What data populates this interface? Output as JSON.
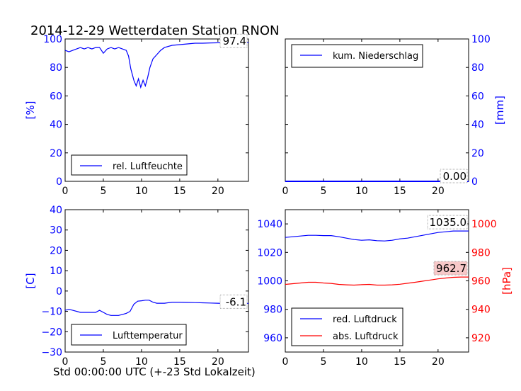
{
  "title": "2014-12-29 Wetterdaten Station RNON",
  "xlabel": "Std 00:00:00 UTC (+-23 Std Lokalzeit)",
  "colors": {
    "blue": "#0000ff",
    "red": "#ff0000",
    "annotation_box": "#f7c8c8"
  },
  "chart_data": [
    {
      "type": "line",
      "panel": "top-left",
      "xlim": [
        0,
        24
      ],
      "ylim": [
        0,
        100
      ],
      "x_ticks": [
        0,
        5,
        10,
        15,
        20
      ],
      "y_ticks": [
        0,
        20,
        40,
        60,
        80,
        100
      ],
      "ylabel": "[%]",
      "ylabel_color": "#0000ff",
      "legend_position": "bottom-left",
      "annotation": "97.4",
      "series": [
        {
          "name": "rel. Luftfeuchte",
          "color": "#0000ff",
          "x": [
            0,
            0.5,
            1,
            1.5,
            2,
            2.5,
            3,
            3.5,
            4,
            4.5,
            5,
            5.5,
            6,
            6.5,
            7,
            7.5,
            8,
            8.3,
            8.6,
            9,
            9.3,
            9.6,
            9.9,
            10.2,
            10.5,
            10.8,
            11.1,
            11.5,
            12,
            12.5,
            13,
            14,
            15,
            16,
            17,
            18,
            19,
            20,
            21,
            22,
            23,
            24
          ],
          "y": [
            92,
            91,
            92,
            93,
            94,
            93,
            94,
            93,
            94,
            94,
            90,
            93,
            94,
            93,
            94,
            93,
            92,
            88,
            79,
            71,
            67,
            72,
            66,
            71,
            67,
            73,
            80,
            86,
            89,
            92,
            94,
            95.5,
            96,
            96.5,
            97,
            97,
            97.2,
            97.3,
            97.4,
            97.4,
            97.4,
            97.4
          ]
        }
      ]
    },
    {
      "type": "line",
      "panel": "top-right",
      "xlim": [
        0,
        24
      ],
      "ylim": [
        0,
        100
      ],
      "x_ticks": [
        0,
        5,
        10,
        15,
        20
      ],
      "y_ticks": [
        0,
        20,
        40,
        60,
        80,
        100
      ],
      "ylabel": "[mm]",
      "ylabel_color": "#0000ff",
      "legend_position": "top-left",
      "annotation": "0.00",
      "series": [
        {
          "name": "kum. Niederschlag",
          "color": "#0000ff",
          "x": [
            0,
            24
          ],
          "y": [
            0,
            0
          ]
        }
      ]
    },
    {
      "type": "line",
      "panel": "bottom-left",
      "xlim": [
        0,
        24
      ],
      "ylim": [
        -30,
        40
      ],
      "x_ticks": [
        0,
        5,
        10,
        15,
        20
      ],
      "y_ticks": [
        -30,
        -20,
        -10,
        0,
        10,
        20,
        30,
        40
      ],
      "ylabel": "[C]",
      "ylabel_color": "#0000ff",
      "legend_position": "bottom-left",
      "annotation": "-6.1",
      "series": [
        {
          "name": "Lufttemperatur",
          "color": "#0000ff",
          "x": [
            0,
            0.5,
            1,
            2,
            3,
            4,
            4.5,
            5,
            5.5,
            6,
            6.5,
            7,
            7.5,
            8,
            8.5,
            9,
            9.5,
            10,
            10.5,
            11,
            11.5,
            12,
            13,
            14,
            15,
            16,
            17,
            18,
            19,
            20,
            21,
            22,
            23,
            24
          ],
          "y": [
            -9.5,
            -9,
            -9.5,
            -10.5,
            -10.5,
            -10.5,
            -9.5,
            -10.5,
            -11.5,
            -12,
            -12,
            -12,
            -11.5,
            -11,
            -10,
            -6.5,
            -5,
            -4.8,
            -4.5,
            -4.5,
            -5.5,
            -6,
            -6,
            -5.5,
            -5.5,
            -5.6,
            -5.7,
            -5.8,
            -5.9,
            -6,
            -6.1,
            -6.1,
            -6.1,
            -6.1
          ]
        }
      ]
    },
    {
      "type": "line",
      "panel": "bottom-right",
      "xlim": [
        0,
        24
      ],
      "ylim_left": [
        950,
        1050
      ],
      "ylim_right": [
        910,
        1010
      ],
      "x_ticks": [
        0,
        5,
        10,
        15,
        20
      ],
      "y_ticks_left": [
        960,
        980,
        1000,
        1020,
        1040
      ],
      "y_ticks_right": [
        920,
        940,
        960,
        980,
        1000
      ],
      "ylabel_right": "[hPa]",
      "ylabel_color": "#ff0000",
      "legend_position": "bottom-left",
      "annotations": [
        "1035.0",
        "962.7"
      ],
      "series": [
        {
          "name": "red. Luftdruck",
          "color": "#0000ff",
          "axis": "left",
          "x": [
            0,
            1,
            2,
            3,
            4,
            5,
            6,
            7,
            8,
            9,
            10,
            11,
            12,
            13,
            14,
            15,
            16,
            17,
            18,
            19,
            20,
            21,
            22,
            23,
            24
          ],
          "y": [
            1030.5,
            1031,
            1031.5,
            1032,
            1032,
            1031.8,
            1031.8,
            1031,
            1030,
            1029,
            1028.5,
            1028.8,
            1028.2,
            1028,
            1028.5,
            1029.5,
            1030,
            1031,
            1032,
            1033,
            1034,
            1034.5,
            1035,
            1035,
            1035
          ]
        },
        {
          "name": "abs. Luftdruck",
          "color": "#ff0000",
          "axis": "right",
          "x": [
            0,
            1,
            2,
            3,
            4,
            5,
            6,
            7,
            8,
            9,
            10,
            11,
            12,
            13,
            14,
            15,
            16,
            17,
            18,
            19,
            20,
            21,
            22,
            23,
            24
          ],
          "y": [
            957.5,
            958,
            958.5,
            959,
            959,
            958.5,
            958.2,
            957.5,
            957.2,
            957,
            957.3,
            957.5,
            957,
            957,
            957.2,
            957.6,
            958.3,
            959,
            959.8,
            960.6,
            961.4,
            962,
            962.5,
            962.7,
            962.7
          ]
        }
      ]
    }
  ]
}
